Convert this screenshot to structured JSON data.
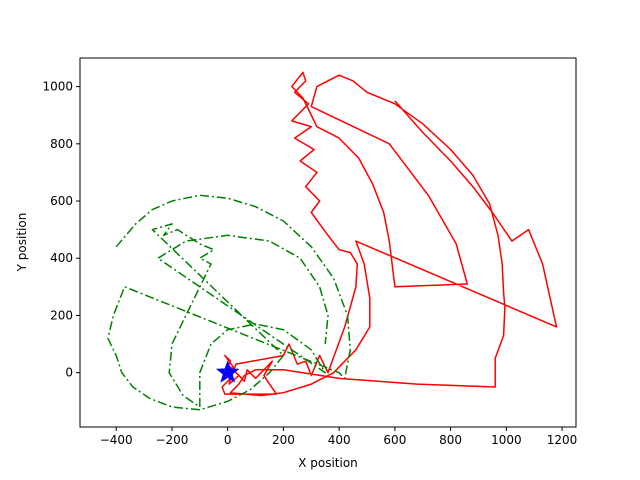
{
  "chart_data": {
    "type": "line",
    "title": "",
    "xlabel": "X position",
    "ylabel": "Y position",
    "xlim": [
      -530,
      1250
    ],
    "ylim": [
      -190,
      1100
    ],
    "xticks": [
      -400,
      -200,
      0,
      200,
      400,
      600,
      800,
      1000,
      1200
    ],
    "yticks": [
      0,
      200,
      400,
      600,
      800,
      1000
    ],
    "grid": false,
    "series": [
      {
        "color": "#ff0000",
        "style": "solid",
        "points": [
          [
            -5,
            10
          ],
          [
            10,
            40
          ],
          [
            -10,
            60
          ],
          [
            20,
            20
          ],
          [
            5,
            -40
          ],
          [
            40,
            -10
          ],
          [
            10,
            20
          ],
          [
            60,
            -30
          ],
          [
            70,
            10
          ],
          [
            100,
            -20
          ],
          [
            160,
            40
          ],
          [
            130,
            -10
          ],
          [
            150,
            -40
          ],
          [
            175,
            -75
          ],
          [
            -10,
            -75
          ],
          [
            -20,
            -50
          ],
          [
            10,
            -20
          ],
          [
            30,
            30
          ],
          [
            200,
            60
          ],
          [
            220,
            100
          ],
          [
            250,
            30
          ],
          [
            280,
            40
          ],
          [
            300,
            -10
          ],
          [
            330,
            60
          ],
          [
            360,
            0
          ],
          [
            420,
            160
          ],
          [
            460,
            300
          ],
          [
            465,
            380
          ],
          [
            440,
            420
          ],
          [
            400,
            430
          ],
          [
            360,
            480
          ],
          [
            330,
            520
          ],
          [
            300,
            560
          ],
          [
            330,
            600
          ],
          [
            280,
            650
          ],
          [
            320,
            700
          ],
          [
            260,
            740
          ],
          [
            310,
            780
          ],
          [
            240,
            820
          ],
          [
            300,
            860
          ],
          [
            230,
            880
          ],
          [
            290,
            940
          ],
          [
            240,
            980
          ],
          [
            280,
            1020
          ],
          [
            270,
            1050
          ],
          [
            230,
            1000
          ],
          [
            270,
            960
          ],
          [
            320,
            860
          ],
          [
            400,
            820
          ],
          [
            470,
            750
          ],
          [
            520,
            660
          ],
          [
            560,
            560
          ],
          [
            580,
            460
          ],
          [
            590,
            380
          ],
          [
            600,
            300
          ],
          [
            860,
            310
          ],
          [
            820,
            450
          ],
          [
            720,
            620
          ],
          [
            580,
            800
          ],
          [
            300,
            930
          ],
          [
            320,
            1000
          ],
          [
            400,
            1040
          ],
          [
            450,
            1020
          ],
          [
            500,
            980
          ],
          [
            600,
            940
          ],
          [
            700,
            870
          ],
          [
            800,
            780
          ],
          [
            880,
            690
          ],
          [
            940,
            590
          ],
          [
            970,
            480
          ],
          [
            985,
            380
          ],
          [
            990,
            280
          ],
          [
            995,
            230
          ],
          [
            990,
            130
          ],
          [
            960,
            50
          ],
          [
            960,
            -50
          ],
          [
            680,
            -40
          ],
          [
            400,
            -20
          ],
          [
            200,
            10
          ],
          [
            100,
            10
          ],
          [
            60,
            -10
          ],
          [
            40,
            -40
          ],
          [
            10,
            -70
          ],
          [
            120,
            -80
          ],
          [
            200,
            -70
          ],
          [
            300,
            -40
          ],
          [
            380,
            0
          ],
          [
            460,
            80
          ],
          [
            510,
            160
          ],
          [
            510,
            260
          ],
          [
            490,
            380
          ],
          [
            460,
            460
          ],
          [
            1180,
            160
          ],
          [
            1130,
            380
          ],
          [
            1080,
            500
          ],
          [
            1020,
            460
          ],
          [
            950,
            560
          ],
          [
            880,
            650
          ],
          [
            800,
            740
          ],
          [
            700,
            840
          ],
          [
            600,
            950
          ]
        ]
      },
      {
        "color": "#008000",
        "style": "dashdot",
        "points": [
          [
            -400,
            440
          ],
          [
            -330,
            520
          ],
          [
            -270,
            570
          ],
          [
            -200,
            600
          ],
          [
            -100,
            620
          ],
          [
            0,
            610
          ],
          [
            100,
            580
          ],
          [
            200,
            530
          ],
          [
            300,
            440
          ],
          [
            380,
            330
          ],
          [
            430,
            200
          ],
          [
            440,
            80
          ],
          [
            420,
            -20
          ],
          [
            400,
            0
          ],
          [
            -370,
            300
          ],
          [
            -410,
            200
          ],
          [
            -430,
            120
          ],
          [
            -400,
            60
          ],
          [
            -380,
            0
          ],
          [
            -340,
            -50
          ],
          [
            -280,
            -90
          ],
          [
            -200,
            -120
          ],
          [
            -100,
            -130
          ],
          [
            0,
            -100
          ],
          [
            80,
            -60
          ],
          [
            150,
            0
          ],
          [
            200,
            60
          ],
          [
            -270,
            500
          ],
          [
            -200,
            520
          ],
          [
            -230,
            480
          ],
          [
            -180,
            500
          ],
          [
            -100,
            450
          ],
          [
            -50,
            430
          ],
          [
            -100,
            400
          ],
          [
            -60,
            380
          ],
          [
            -150,
            200
          ],
          [
            -200,
            100
          ],
          [
            -210,
            0
          ],
          [
            -160,
            -80
          ],
          [
            -100,
            -120
          ],
          [
            -100,
            0
          ],
          [
            -60,
            100
          ],
          [
            0,
            150
          ],
          [
            100,
            170
          ],
          [
            200,
            150
          ],
          [
            300,
            80
          ],
          [
            350,
            0
          ],
          [
            -250,
            400
          ],
          [
            -150,
            460
          ],
          [
            0,
            480
          ],
          [
            150,
            460
          ],
          [
            260,
            400
          ],
          [
            330,
            300
          ],
          [
            360,
            200
          ],
          [
            350,
            100
          ]
        ]
      }
    ],
    "marker": {
      "x": 0,
      "y": 0,
      "shape": "star",
      "color": "#0000ff"
    }
  }
}
